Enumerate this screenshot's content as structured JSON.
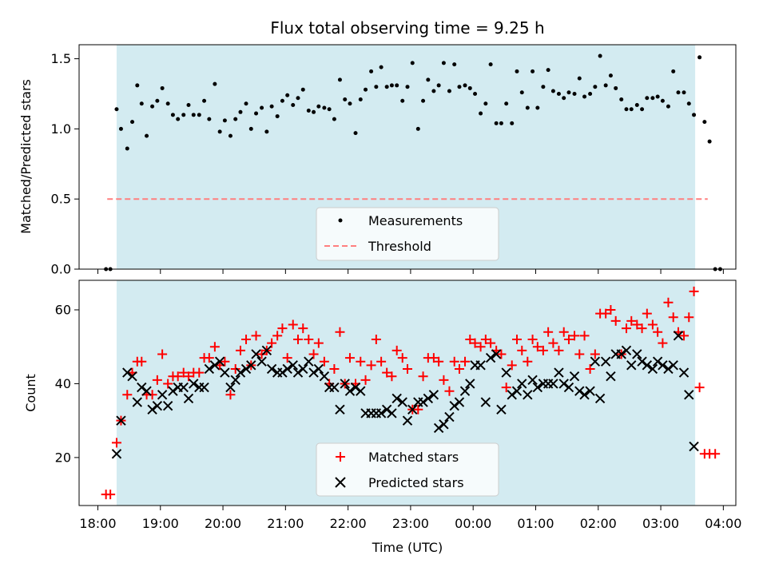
{
  "chart_data": {
    "title": "Flux total observing time = 9.25 h",
    "xlabel": "Time (UTC)",
    "x_ticks": [
      "18:00",
      "19:00",
      "20:00",
      "21:00",
      "22:00",
      "23:00",
      "00:00",
      "01:00",
      "02:00",
      "03:00",
      "04:00"
    ],
    "x_range_hours": [
      17.7,
      28.2
    ],
    "shaded_span_hours": [
      18.3,
      27.55
    ],
    "colors": {
      "shade": "#d3ebf1",
      "measurement": "#000000",
      "threshold": "#ff7f7f",
      "matched": "#ff0000",
      "predicted": "#000000"
    },
    "top": {
      "type": "scatter",
      "ylabel": "Matched/Predicted stars",
      "ylim": [
        0,
        1.6
      ],
      "y_ticks": [
        "0.0",
        "0.5",
        "1.0",
        "1.5"
      ],
      "threshold": 0.5,
      "threshold_x_hours": [
        18.15,
        27.75
      ],
      "legend": {
        "position": "lower-center",
        "entries": [
          "Measurements",
          "Threshold"
        ]
      },
      "measurements": [
        [
          18.13,
          0
        ],
        [
          18.2,
          0
        ],
        [
          18.3,
          1.14
        ],
        [
          18.37,
          1.0
        ],
        [
          18.47,
          0.86
        ],
        [
          18.55,
          1.05
        ],
        [
          18.63,
          1.31
        ],
        [
          18.7,
          1.18
        ],
        [
          18.78,
          0.95
        ],
        [
          18.87,
          1.16
        ],
        [
          18.95,
          1.2
        ],
        [
          19.03,
          1.29
        ],
        [
          19.12,
          1.18
        ],
        [
          19.2,
          1.1
        ],
        [
          19.28,
          1.07
        ],
        [
          19.37,
          1.1
        ],
        [
          19.45,
          1.17
        ],
        [
          19.53,
          1.1
        ],
        [
          19.62,
          1.1
        ],
        [
          19.7,
          1.2
        ],
        [
          19.78,
          1.07
        ],
        [
          19.87,
          1.32
        ],
        [
          19.95,
          0.98
        ],
        [
          20.03,
          1.06
        ],
        [
          20.12,
          0.95
        ],
        [
          20.2,
          1.07
        ],
        [
          20.28,
          1.12
        ],
        [
          20.37,
          1.18
        ],
        [
          20.45,
          1.0
        ],
        [
          20.53,
          1.11
        ],
        [
          20.62,
          1.15
        ],
        [
          20.7,
          0.98
        ],
        [
          20.78,
          1.16
        ],
        [
          20.87,
          1.09
        ],
        [
          20.95,
          1.2
        ],
        [
          21.03,
          1.24
        ],
        [
          21.12,
          1.17
        ],
        [
          21.2,
          1.22
        ],
        [
          21.28,
          1.28
        ],
        [
          21.37,
          1.13
        ],
        [
          21.45,
          1.12
        ],
        [
          21.53,
          1.16
        ],
        [
          21.62,
          1.15
        ],
        [
          21.7,
          1.14
        ],
        [
          21.78,
          1.07
        ],
        [
          21.87,
          1.35
        ],
        [
          21.95,
          1.21
        ],
        [
          22.03,
          1.18
        ],
        [
          22.12,
          0.97
        ],
        [
          22.2,
          1.21
        ],
        [
          22.28,
          1.28
        ],
        [
          22.37,
          1.41
        ],
        [
          22.45,
          1.3
        ],
        [
          22.53,
          1.44
        ],
        [
          22.62,
          1.3
        ],
        [
          22.7,
          1.31
        ],
        [
          22.78,
          1.31
        ],
        [
          22.87,
          1.2
        ],
        [
          22.95,
          1.3
        ],
        [
          23.03,
          1.47
        ],
        [
          23.12,
          1.0
        ],
        [
          23.2,
          1.2
        ],
        [
          23.28,
          1.35
        ],
        [
          23.37,
          1.27
        ],
        [
          23.45,
          1.31
        ],
        [
          23.53,
          1.47
        ],
        [
          23.62,
          1.27
        ],
        [
          23.7,
          1.46
        ],
        [
          23.78,
          1.3
        ],
        [
          23.87,
          1.31
        ],
        [
          23.95,
          1.29
        ],
        [
          24.03,
          1.25
        ],
        [
          24.12,
          1.11
        ],
        [
          24.2,
          1.18
        ],
        [
          24.28,
          1.46
        ],
        [
          24.37,
          1.04
        ],
        [
          24.45,
          1.04
        ],
        [
          24.53,
          1.18
        ],
        [
          24.62,
          1.04
        ],
        [
          24.7,
          1.41
        ],
        [
          24.78,
          1.26
        ],
        [
          24.87,
          1.15
        ],
        [
          24.95,
          1.41
        ],
        [
          25.03,
          1.15
        ],
        [
          25.12,
          1.3
        ],
        [
          25.2,
          1.42
        ],
        [
          25.28,
          1.27
        ],
        [
          25.37,
          1.25
        ],
        [
          25.45,
          1.22
        ],
        [
          25.53,
          1.26
        ],
        [
          25.62,
          1.25
        ],
        [
          25.7,
          1.36
        ],
        [
          25.78,
          1.23
        ],
        [
          25.87,
          1.25
        ],
        [
          25.95,
          1.3
        ],
        [
          26.03,
          1.52
        ],
        [
          26.12,
          1.31
        ],
        [
          26.2,
          1.38
        ],
        [
          26.28,
          1.29
        ],
        [
          26.37,
          1.21
        ],
        [
          26.45,
          1.14
        ],
        [
          26.53,
          1.14
        ],
        [
          26.62,
          1.17
        ],
        [
          26.7,
          1.14
        ],
        [
          26.78,
          1.22
        ],
        [
          26.87,
          1.22
        ],
        [
          26.95,
          1.23
        ],
        [
          27.03,
          1.2
        ],
        [
          27.12,
          1.16
        ],
        [
          27.2,
          1.41
        ],
        [
          27.28,
          1.26
        ],
        [
          27.37,
          1.26
        ],
        [
          27.45,
          1.18
        ],
        [
          27.53,
          1.1
        ],
        [
          27.62,
          1.51
        ],
        [
          27.7,
          1.05
        ],
        [
          27.78,
          0.91
        ],
        [
          27.87,
          0
        ],
        [
          27.95,
          0
        ]
      ]
    },
    "bottom": {
      "type": "scatter",
      "ylabel": "Count",
      "ylim": [
        7,
        68
      ],
      "y_ticks": [
        "20",
        "40",
        "60"
      ],
      "legend": {
        "position": "lower-center",
        "entries": [
          "Matched stars",
          "Predicted stars"
        ]
      },
      "matched": [
        [
          18.13,
          10
        ],
        [
          18.2,
          10
        ],
        [
          18.3,
          24
        ],
        [
          18.37,
          30
        ],
        [
          18.47,
          37
        ],
        [
          18.55,
          43
        ],
        [
          18.63,
          46
        ],
        [
          18.7,
          46
        ],
        [
          18.78,
          37
        ],
        [
          18.87,
          37
        ],
        [
          18.95,
          41
        ],
        [
          19.03,
          48
        ],
        [
          19.12,
          40
        ],
        [
          19.2,
          42
        ],
        [
          19.28,
          42
        ],
        [
          19.37,
          43
        ],
        [
          19.45,
          42
        ],
        [
          19.53,
          43
        ],
        [
          19.62,
          43
        ],
        [
          19.7,
          47
        ],
        [
          19.78,
          47
        ],
        [
          19.87,
          50
        ],
        [
          19.95,
          45
        ],
        [
          20.03,
          46
        ],
        [
          20.12,
          37
        ],
        [
          20.2,
          44
        ],
        [
          20.28,
          49
        ],
        [
          20.37,
          52
        ],
        [
          20.45,
          45
        ],
        [
          20.53,
          53
        ],
        [
          20.62,
          48
        ],
        [
          20.7,
          49
        ],
        [
          20.78,
          51
        ],
        [
          20.87,
          53
        ],
        [
          20.95,
          55
        ],
        [
          21.03,
          47
        ],
        [
          21.12,
          56
        ],
        [
          21.2,
          52
        ],
        [
          21.28,
          55
        ],
        [
          21.37,
          52
        ],
        [
          21.45,
          48
        ],
        [
          21.53,
          51
        ],
        [
          21.62,
          46
        ],
        [
          21.7,
          40
        ],
        [
          21.78,
          44
        ],
        [
          21.87,
          54
        ],
        [
          21.95,
          40
        ],
        [
          22.03,
          47
        ],
        [
          22.12,
          40
        ],
        [
          22.2,
          46
        ],
        [
          22.28,
          41
        ],
        [
          22.37,
          45
        ],
        [
          22.45,
          52
        ],
        [
          22.53,
          46
        ],
        [
          22.62,
          43
        ],
        [
          22.7,
          42
        ],
        [
          22.78,
          49
        ],
        [
          22.87,
          47
        ],
        [
          22.95,
          44
        ],
        [
          23.03,
          33
        ],
        [
          23.12,
          33
        ],
        [
          23.2,
          42
        ],
        [
          23.28,
          47
        ],
        [
          23.37,
          47
        ],
        [
          23.45,
          46
        ],
        [
          23.53,
          41
        ],
        [
          23.62,
          38
        ],
        [
          23.7,
          46
        ],
        [
          23.78,
          44
        ],
        [
          23.87,
          46
        ],
        [
          23.95,
          52
        ],
        [
          24.03,
          51
        ],
        [
          24.12,
          50
        ],
        [
          24.2,
          52
        ],
        [
          24.28,
          51
        ],
        [
          24.37,
          49
        ],
        [
          24.45,
          48
        ],
        [
          24.53,
          39
        ],
        [
          24.62,
          45
        ],
        [
          24.7,
          52
        ],
        [
          24.78,
          49
        ],
        [
          24.87,
          46
        ],
        [
          24.95,
          52
        ],
        [
          25.03,
          50
        ],
        [
          25.12,
          49
        ],
        [
          25.2,
          54
        ],
        [
          25.28,
          51
        ],
        [
          25.37,
          49
        ],
        [
          25.45,
          54
        ],
        [
          25.53,
          52
        ],
        [
          25.62,
          53
        ],
        [
          25.7,
          48
        ],
        [
          25.78,
          53
        ],
        [
          25.87,
          44
        ],
        [
          25.95,
          48
        ],
        [
          26.03,
          59
        ],
        [
          26.12,
          59
        ],
        [
          26.2,
          60
        ],
        [
          26.28,
          57
        ],
        [
          26.37,
          48
        ],
        [
          26.45,
          55
        ],
        [
          26.53,
          57
        ],
        [
          26.62,
          56
        ],
        [
          26.7,
          55
        ],
        [
          26.78,
          59
        ],
        [
          26.87,
          56
        ],
        [
          26.95,
          54
        ],
        [
          27.03,
          51
        ],
        [
          27.12,
          62
        ],
        [
          27.2,
          58
        ],
        [
          27.28,
          54
        ],
        [
          27.37,
          53
        ],
        [
          27.45,
          58
        ],
        [
          27.53,
          65
        ],
        [
          27.62,
          39
        ],
        [
          27.7,
          21
        ],
        [
          27.78,
          21
        ],
        [
          27.87,
          21
        ]
      ],
      "predicted": [
        [
          18.3,
          21
        ],
        [
          18.37,
          30
        ],
        [
          18.47,
          43
        ],
        [
          18.55,
          42
        ],
        [
          18.63,
          35
        ],
        [
          18.7,
          39
        ],
        [
          18.78,
          38
        ],
        [
          18.87,
          33
        ],
        [
          18.95,
          34
        ],
        [
          19.03,
          37
        ],
        [
          19.12,
          34
        ],
        [
          19.2,
          38
        ],
        [
          19.28,
          39
        ],
        [
          19.37,
          39
        ],
        [
          19.45,
          36
        ],
        [
          19.53,
          40
        ],
        [
          19.62,
          39
        ],
        [
          19.7,
          39
        ],
        [
          19.78,
          44
        ],
        [
          19.87,
          45
        ],
        [
          19.95,
          46
        ],
        [
          20.03,
          43
        ],
        [
          20.12,
          39
        ],
        [
          20.2,
          41
        ],
        [
          20.28,
          43
        ],
        [
          20.37,
          44
        ],
        [
          20.45,
          45
        ],
        [
          20.53,
          48
        ],
        [
          20.62,
          46
        ],
        [
          20.7,
          49
        ],
        [
          20.78,
          44
        ],
        [
          20.87,
          43
        ],
        [
          20.95,
          43
        ],
        [
          21.03,
          44
        ],
        [
          21.12,
          45
        ],
        [
          21.2,
          43
        ],
        [
          21.28,
          44
        ],
        [
          21.37,
          46
        ],
        [
          21.45,
          43
        ],
        [
          21.53,
          44
        ],
        [
          21.62,
          42
        ],
        [
          21.7,
          39
        ],
        [
          21.78,
          39
        ],
        [
          21.87,
          33
        ],
        [
          21.95,
          40
        ],
        [
          22.03,
          38
        ],
        [
          22.12,
          39
        ],
        [
          22.2,
          38
        ],
        [
          22.28,
          32
        ],
        [
          22.37,
          32
        ],
        [
          22.45,
          32
        ],
        [
          22.53,
          32
        ],
        [
          22.62,
          33
        ],
        [
          22.7,
          32
        ],
        [
          22.78,
          36
        ],
        [
          22.87,
          35
        ],
        [
          22.95,
          30
        ],
        [
          23.03,
          33
        ],
        [
          23.12,
          35
        ],
        [
          23.2,
          35
        ],
        [
          23.28,
          36
        ],
        [
          23.37,
          37
        ],
        [
          23.45,
          28
        ],
        [
          23.53,
          29
        ],
        [
          23.62,
          31
        ],
        [
          23.7,
          34
        ],
        [
          23.78,
          35
        ],
        [
          23.87,
          38
        ],
        [
          23.95,
          40
        ],
        [
          24.03,
          45
        ],
        [
          24.12,
          45
        ],
        [
          24.2,
          35
        ],
        [
          24.28,
          47
        ],
        [
          24.37,
          48
        ],
        [
          24.45,
          33
        ],
        [
          24.53,
          43
        ],
        [
          24.62,
          37
        ],
        [
          24.7,
          38
        ],
        [
          24.78,
          40
        ],
        [
          24.87,
          37
        ],
        [
          24.95,
          41
        ],
        [
          25.03,
          39
        ],
        [
          25.12,
          40
        ],
        [
          25.2,
          40
        ],
        [
          25.28,
          40
        ],
        [
          25.37,
          43
        ],
        [
          25.45,
          40
        ],
        [
          25.53,
          39
        ],
        [
          25.62,
          42
        ],
        [
          25.7,
          38
        ],
        [
          25.78,
          37
        ],
        [
          25.87,
          38
        ],
        [
          25.95,
          46
        ],
        [
          26.03,
          36
        ],
        [
          26.12,
          46
        ],
        [
          26.2,
          42
        ],
        [
          26.28,
          48
        ],
        [
          26.37,
          48
        ],
        [
          26.45,
          49
        ],
        [
          26.53,
          45
        ],
        [
          26.62,
          48
        ],
        [
          26.7,
          46
        ],
        [
          26.78,
          45
        ],
        [
          26.87,
          44
        ],
        [
          26.95,
          46
        ],
        [
          27.03,
          45
        ],
        [
          27.12,
          44
        ],
        [
          27.2,
          45
        ],
        [
          27.28,
          53
        ],
        [
          27.37,
          43
        ],
        [
          27.45,
          37
        ],
        [
          27.53,
          23
        ]
      ]
    }
  }
}
